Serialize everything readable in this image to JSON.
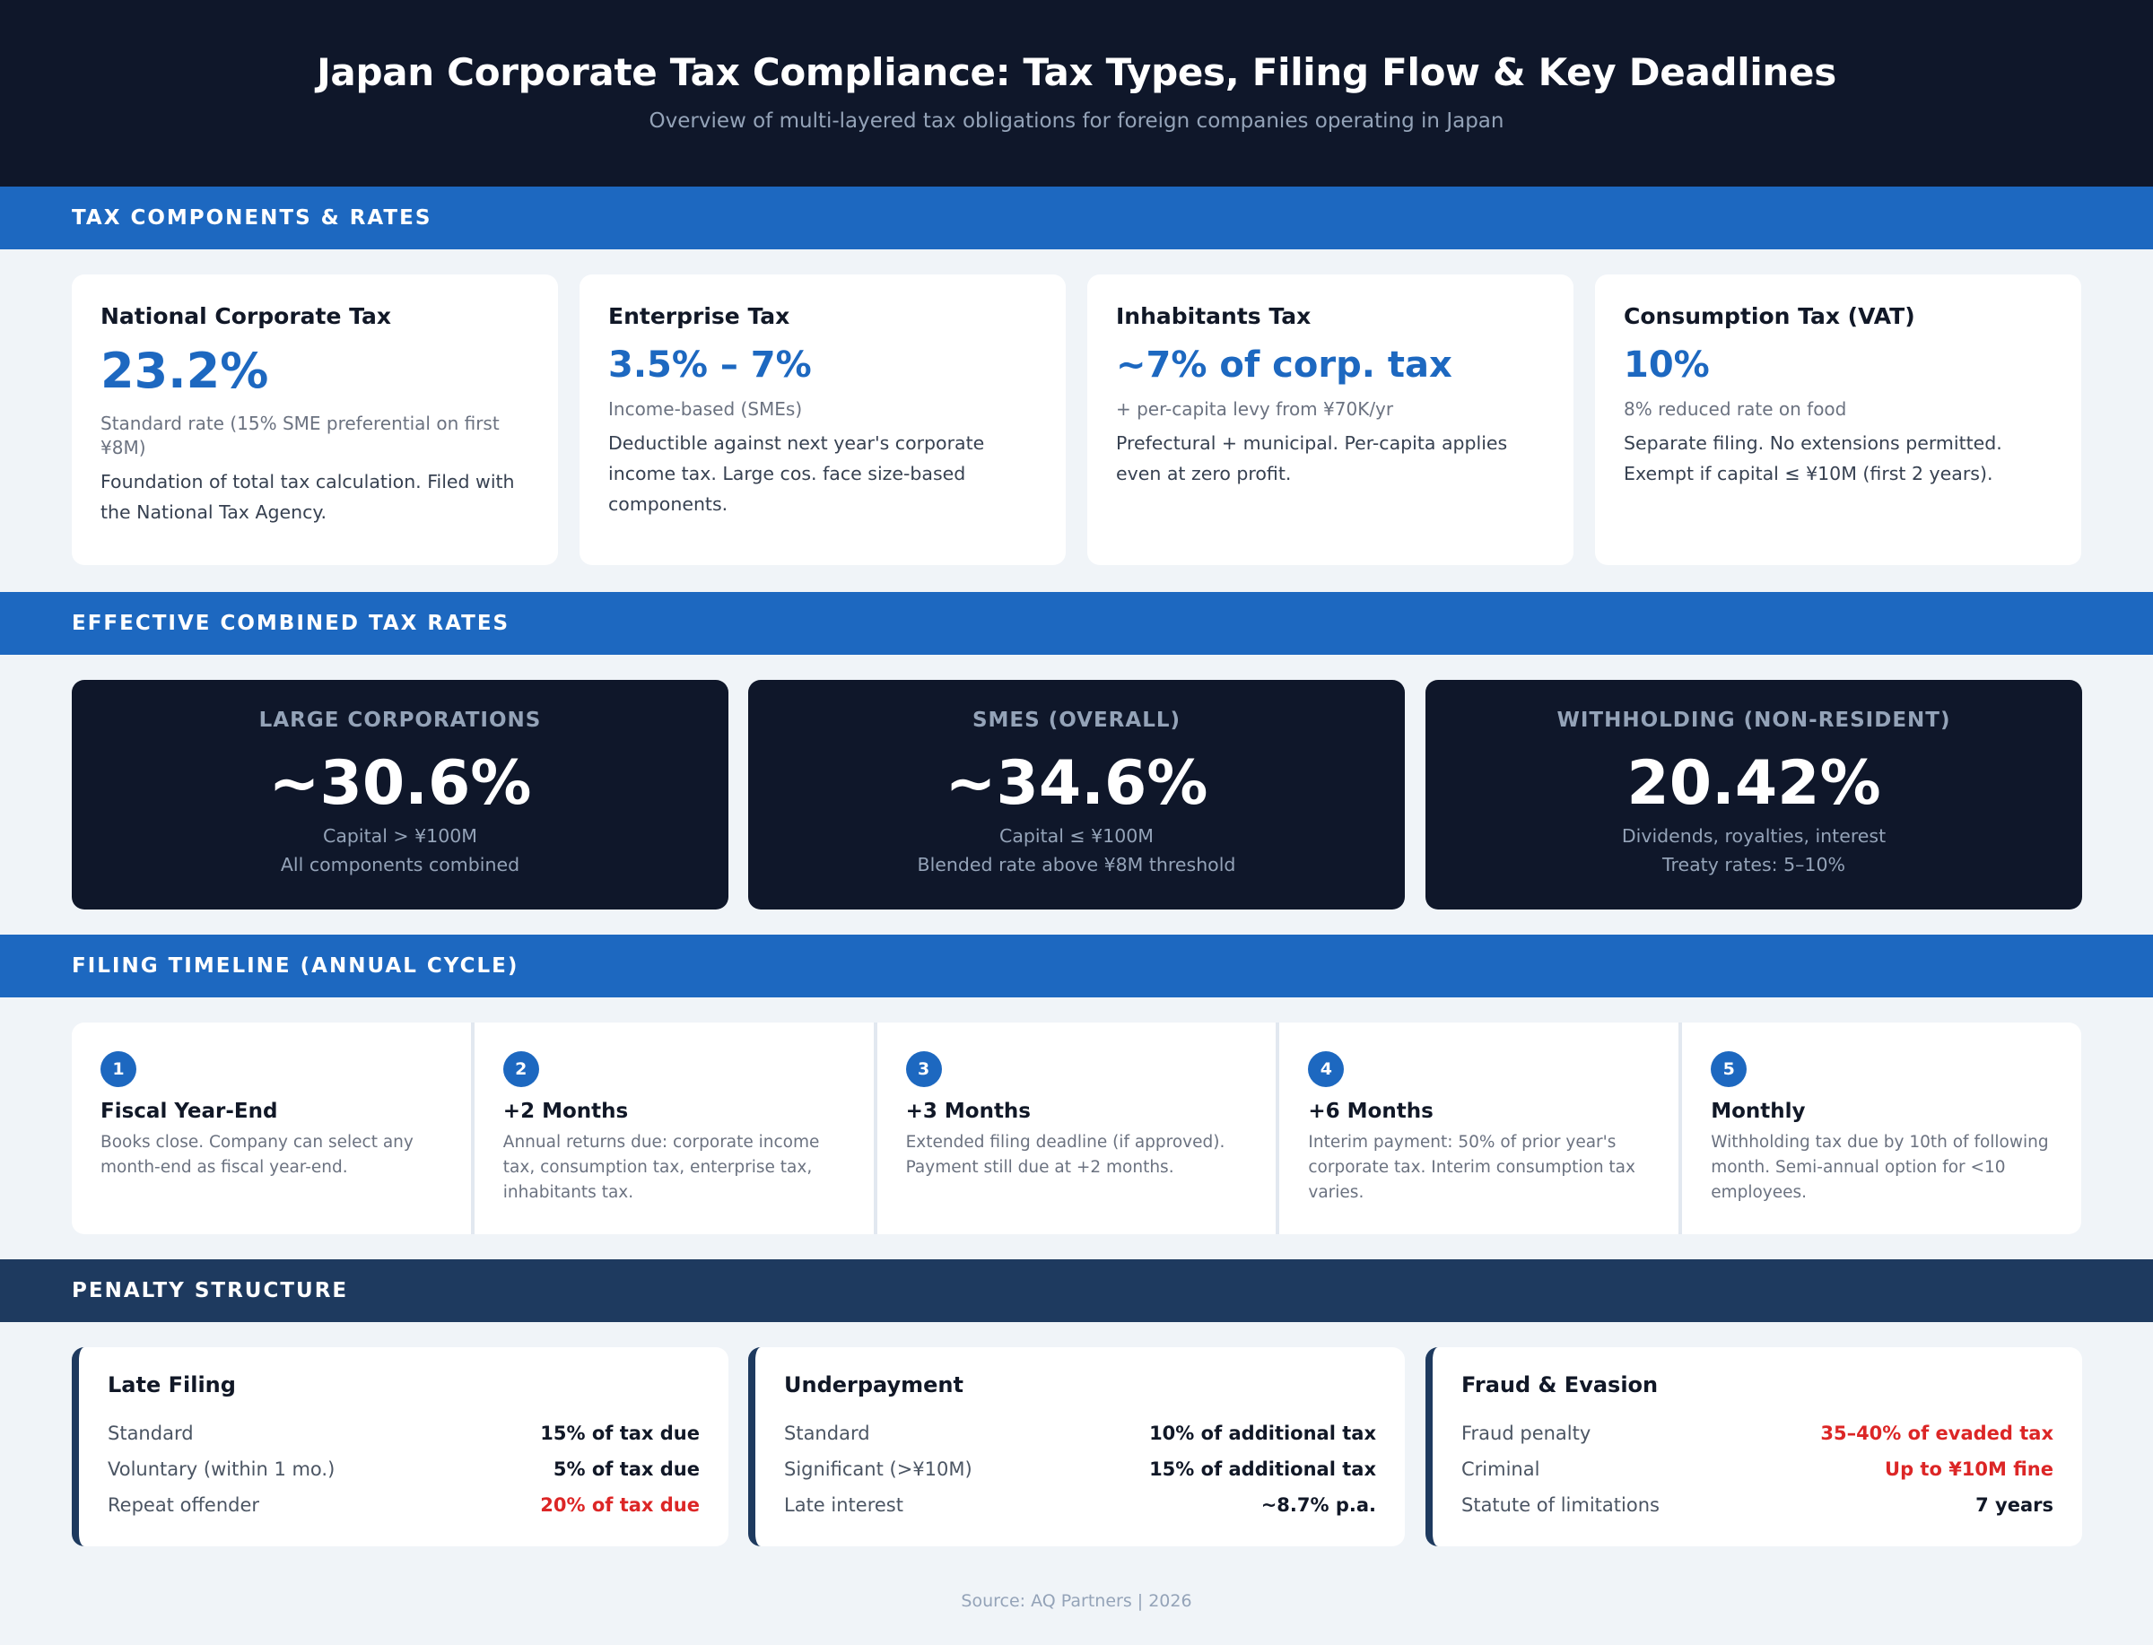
{
  "header": {
    "title": "Japan Corporate Tax Compliance: Tax Types, Filing Flow & Key Deadlines",
    "subtitle": "Overview of multi-layered tax obligations for foreign companies operating in Japan"
  },
  "sections": {
    "components": "TAX COMPONENTS & RATES",
    "effective": "EFFECTIVE COMBINED TAX RATES",
    "timeline": "FILING TIMELINE (ANNUAL CYCLE)",
    "penalty": "PENALTY STRUCTURE"
  },
  "tax_components": [
    {
      "name": "National Corporate Tax",
      "rate": "23.2%",
      "note": "Standard rate (15% SME preferential on first ¥8M)",
      "desc": "Foundation of total tax calculation. Filed with the National Tax Agency."
    },
    {
      "name": "Enterprise Tax",
      "rate": "3.5% – 7%",
      "note": "Income-based (SMEs)",
      "desc": "Deductible against next year's corporate income tax. Large cos. face size-based components."
    },
    {
      "name": "Inhabitants Tax",
      "rate": "~7% of corp. tax",
      "note": "+ per-capita levy from ¥70K/yr",
      "desc": "Prefectural + municipal. Per-capita applies even at zero profit."
    },
    {
      "name": "Consumption Tax (VAT)",
      "rate": "10%",
      "note": "8% reduced rate on food",
      "desc": "Separate filing. No extensions permitted. Exempt if capital ≤ ¥10M (first 2 years)."
    }
  ],
  "effective_rates": [
    {
      "label": "LARGE CORPORATIONS",
      "rate": "~30.6%",
      "line1": "Capital > ¥100M",
      "line2": "All components combined"
    },
    {
      "label": "SMES (OVERALL)",
      "rate": "~34.6%",
      "line1": "Capital ≤ ¥100M",
      "line2": "Blended rate above ¥8M threshold"
    },
    {
      "label": "WITHHOLDING (NON-RESIDENT)",
      "rate": "20.42%",
      "line1": "Dividends, royalties, interest",
      "line2": "Treaty rates: 5–10%"
    }
  ],
  "timeline": [
    {
      "num": "1",
      "title": "Fiscal Year-End",
      "desc": "Books close. Company can select any month-end as fiscal year-end."
    },
    {
      "num": "2",
      "title": "+2 Months",
      "desc": "Annual returns due: corporate income tax, consumption tax, enterprise tax, inhabitants tax."
    },
    {
      "num": "3",
      "title": "+3 Months",
      "desc": "Extended filing deadline (if approved). Payment still due at +2 months."
    },
    {
      "num": "4",
      "title": "+6 Months",
      "desc": "Interim payment: 50% of prior year's corporate tax. Interim consumption tax varies."
    },
    {
      "num": "5",
      "title": "Monthly",
      "desc": "Withholding tax due by 10th of following month. Semi-annual option for <10 employees."
    }
  ],
  "penalties": [
    {
      "title": "Late Filing",
      "rows": [
        {
          "k": "Standard",
          "v": "15% of tax due",
          "red": false
        },
        {
          "k": "Voluntary (within 1 mo.)",
          "v": "5% of tax due",
          "red": false
        },
        {
          "k": "Repeat offender",
          "v": "20% of tax due",
          "red": true
        }
      ]
    },
    {
      "title": "Underpayment",
      "rows": [
        {
          "k": "Standard",
          "v": "10% of additional tax",
          "red": false
        },
        {
          "k": "Significant (>¥10M)",
          "v": "15% of additional tax",
          "red": false
        },
        {
          "k": "Late interest",
          "v": "~8.7% p.a.",
          "red": false
        }
      ]
    },
    {
      "title": "Fraud & Evasion",
      "rows": [
        {
          "k": "Fraud penalty",
          "v": "35–40% of evaded tax",
          "red": true
        },
        {
          "k": "Criminal",
          "v": "Up to ¥10M fine",
          "red": true
        },
        {
          "k": "Statute of limitations",
          "v": "7 years",
          "red": false
        }
      ]
    }
  ],
  "source": "Source: AQ Partners | 2026",
  "colors": {
    "navy": "#0f172a",
    "accent_blue": "#1d68c0",
    "penalty_band": "#1e3a5f",
    "alert_red": "#dc2626"
  }
}
